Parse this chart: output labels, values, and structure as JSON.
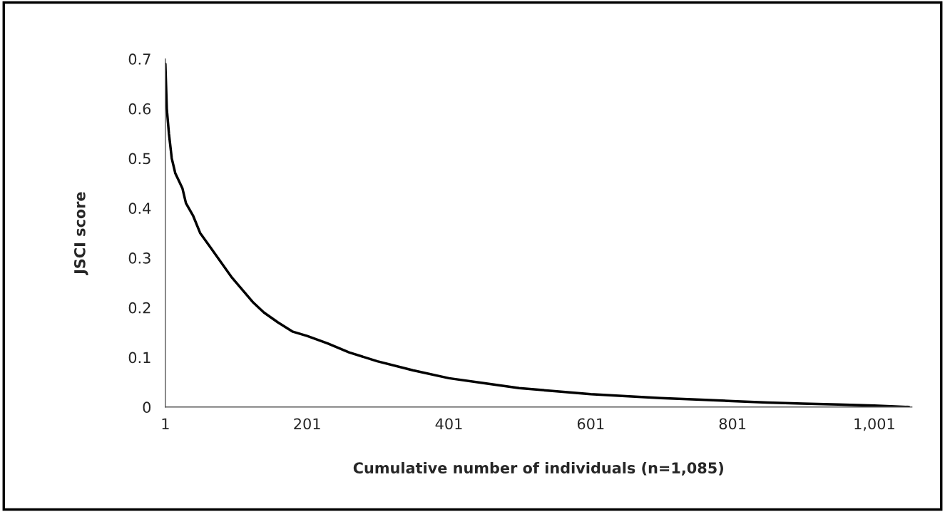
{
  "chart_data": {
    "type": "line",
    "xlabel": "Cumulative number of individuals (n=1,085)",
    "ylabel": "JSCI score",
    "series": [
      {
        "color": "#000000",
        "x": [
          1,
          3,
          6,
          10,
          15,
          25,
          30,
          40,
          50,
          65,
          80,
          95,
          110,
          125,
          140,
          160,
          180,
          201,
          230,
          260,
          300,
          350,
          401,
          450,
          500,
          550,
          601,
          650,
          700,
          750,
          801,
          850,
          900,
          950,
          1001,
          1050
        ],
        "values": [
          0.69,
          0.6,
          0.55,
          0.5,
          0.47,
          0.44,
          0.41,
          0.385,
          0.35,
          0.32,
          0.29,
          0.26,
          0.235,
          0.21,
          0.19,
          0.17,
          0.152,
          0.143,
          0.128,
          0.11,
          0.092,
          0.074,
          0.058,
          0.048,
          0.038,
          0.032,
          0.026,
          0.022,
          0.018,
          0.015,
          0.012,
          0.009,
          0.007,
          0.005,
          0.003,
          0.0
        ]
      }
    ],
    "xlim": [
      1,
      1054
    ],
    "xticks": [
      1,
      201,
      401,
      601,
      801,
      {
        "value": 1001,
        "label": "1,001"
      }
    ],
    "ylim": [
      0,
      0.7
    ],
    "yticks": [
      0,
      0.1,
      0.2,
      0.3,
      0.4,
      0.5,
      0.6,
      0.7
    ],
    "grid": false,
    "legend": false
  }
}
